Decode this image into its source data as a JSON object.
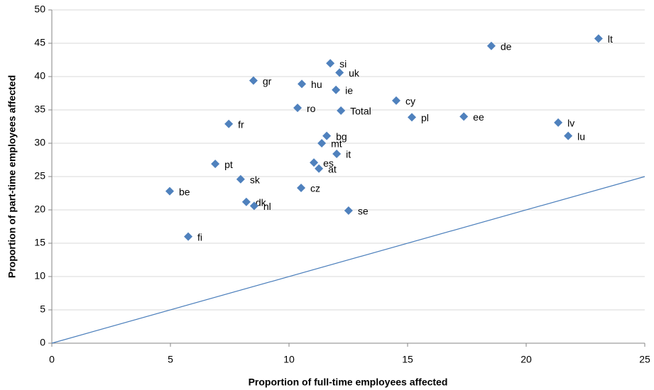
{
  "chart_data": {
    "type": "scatter",
    "x_label": "Proportion of full-time employees affected",
    "y_label": "Proportion of part-time employees affected",
    "labels": [
      "lt",
      "de",
      "si",
      "uk",
      "gr",
      "hu",
      "ie",
      "cy",
      "ro",
      "Total",
      "pl",
      "ee",
      "lv",
      "fr",
      "lu",
      "bg",
      "mt",
      "it",
      "pt",
      "es",
      "at",
      "sk",
      "be",
      "cz",
      "dk",
      "nl",
      "se",
      "fi"
    ],
    "x": [
      23.05,
      18.53,
      11.74,
      12.13,
      8.5,
      10.54,
      11.98,
      14.52,
      10.36,
      12.19,
      15.18,
      17.37,
      21.35,
      7.46,
      21.77,
      11.59,
      11.38,
      12.01,
      6.89,
      11.05,
      11.26,
      7.96,
      4.97,
      10.51,
      8.2,
      8.53,
      12.51,
      5.75
    ],
    "values": [
      45.7,
      44.6,
      42.0,
      40.6,
      39.4,
      38.9,
      38.0,
      36.4,
      35.3,
      34.9,
      33.9,
      34.0,
      33.1,
      32.9,
      31.1,
      31.1,
      30.0,
      28.4,
      26.9,
      27.1,
      26.2,
      24.6,
      22.8,
      23.3,
      21.2,
      20.6,
      19.9,
      16.0
    ],
    "color": "#4f81bd",
    "reference_line": {
      "x": [
        0,
        25
      ],
      "y": [
        0,
        25
      ],
      "color": "#4a7ebb"
    },
    "xlim": [
      0,
      25
    ],
    "xticks": [
      0,
      5,
      10,
      15,
      20,
      25
    ],
    "ylim": [
      0,
      50
    ],
    "yticks": [
      0,
      5,
      10,
      15,
      20,
      25,
      30,
      35,
      40,
      45,
      50
    ],
    "grid": true
  }
}
